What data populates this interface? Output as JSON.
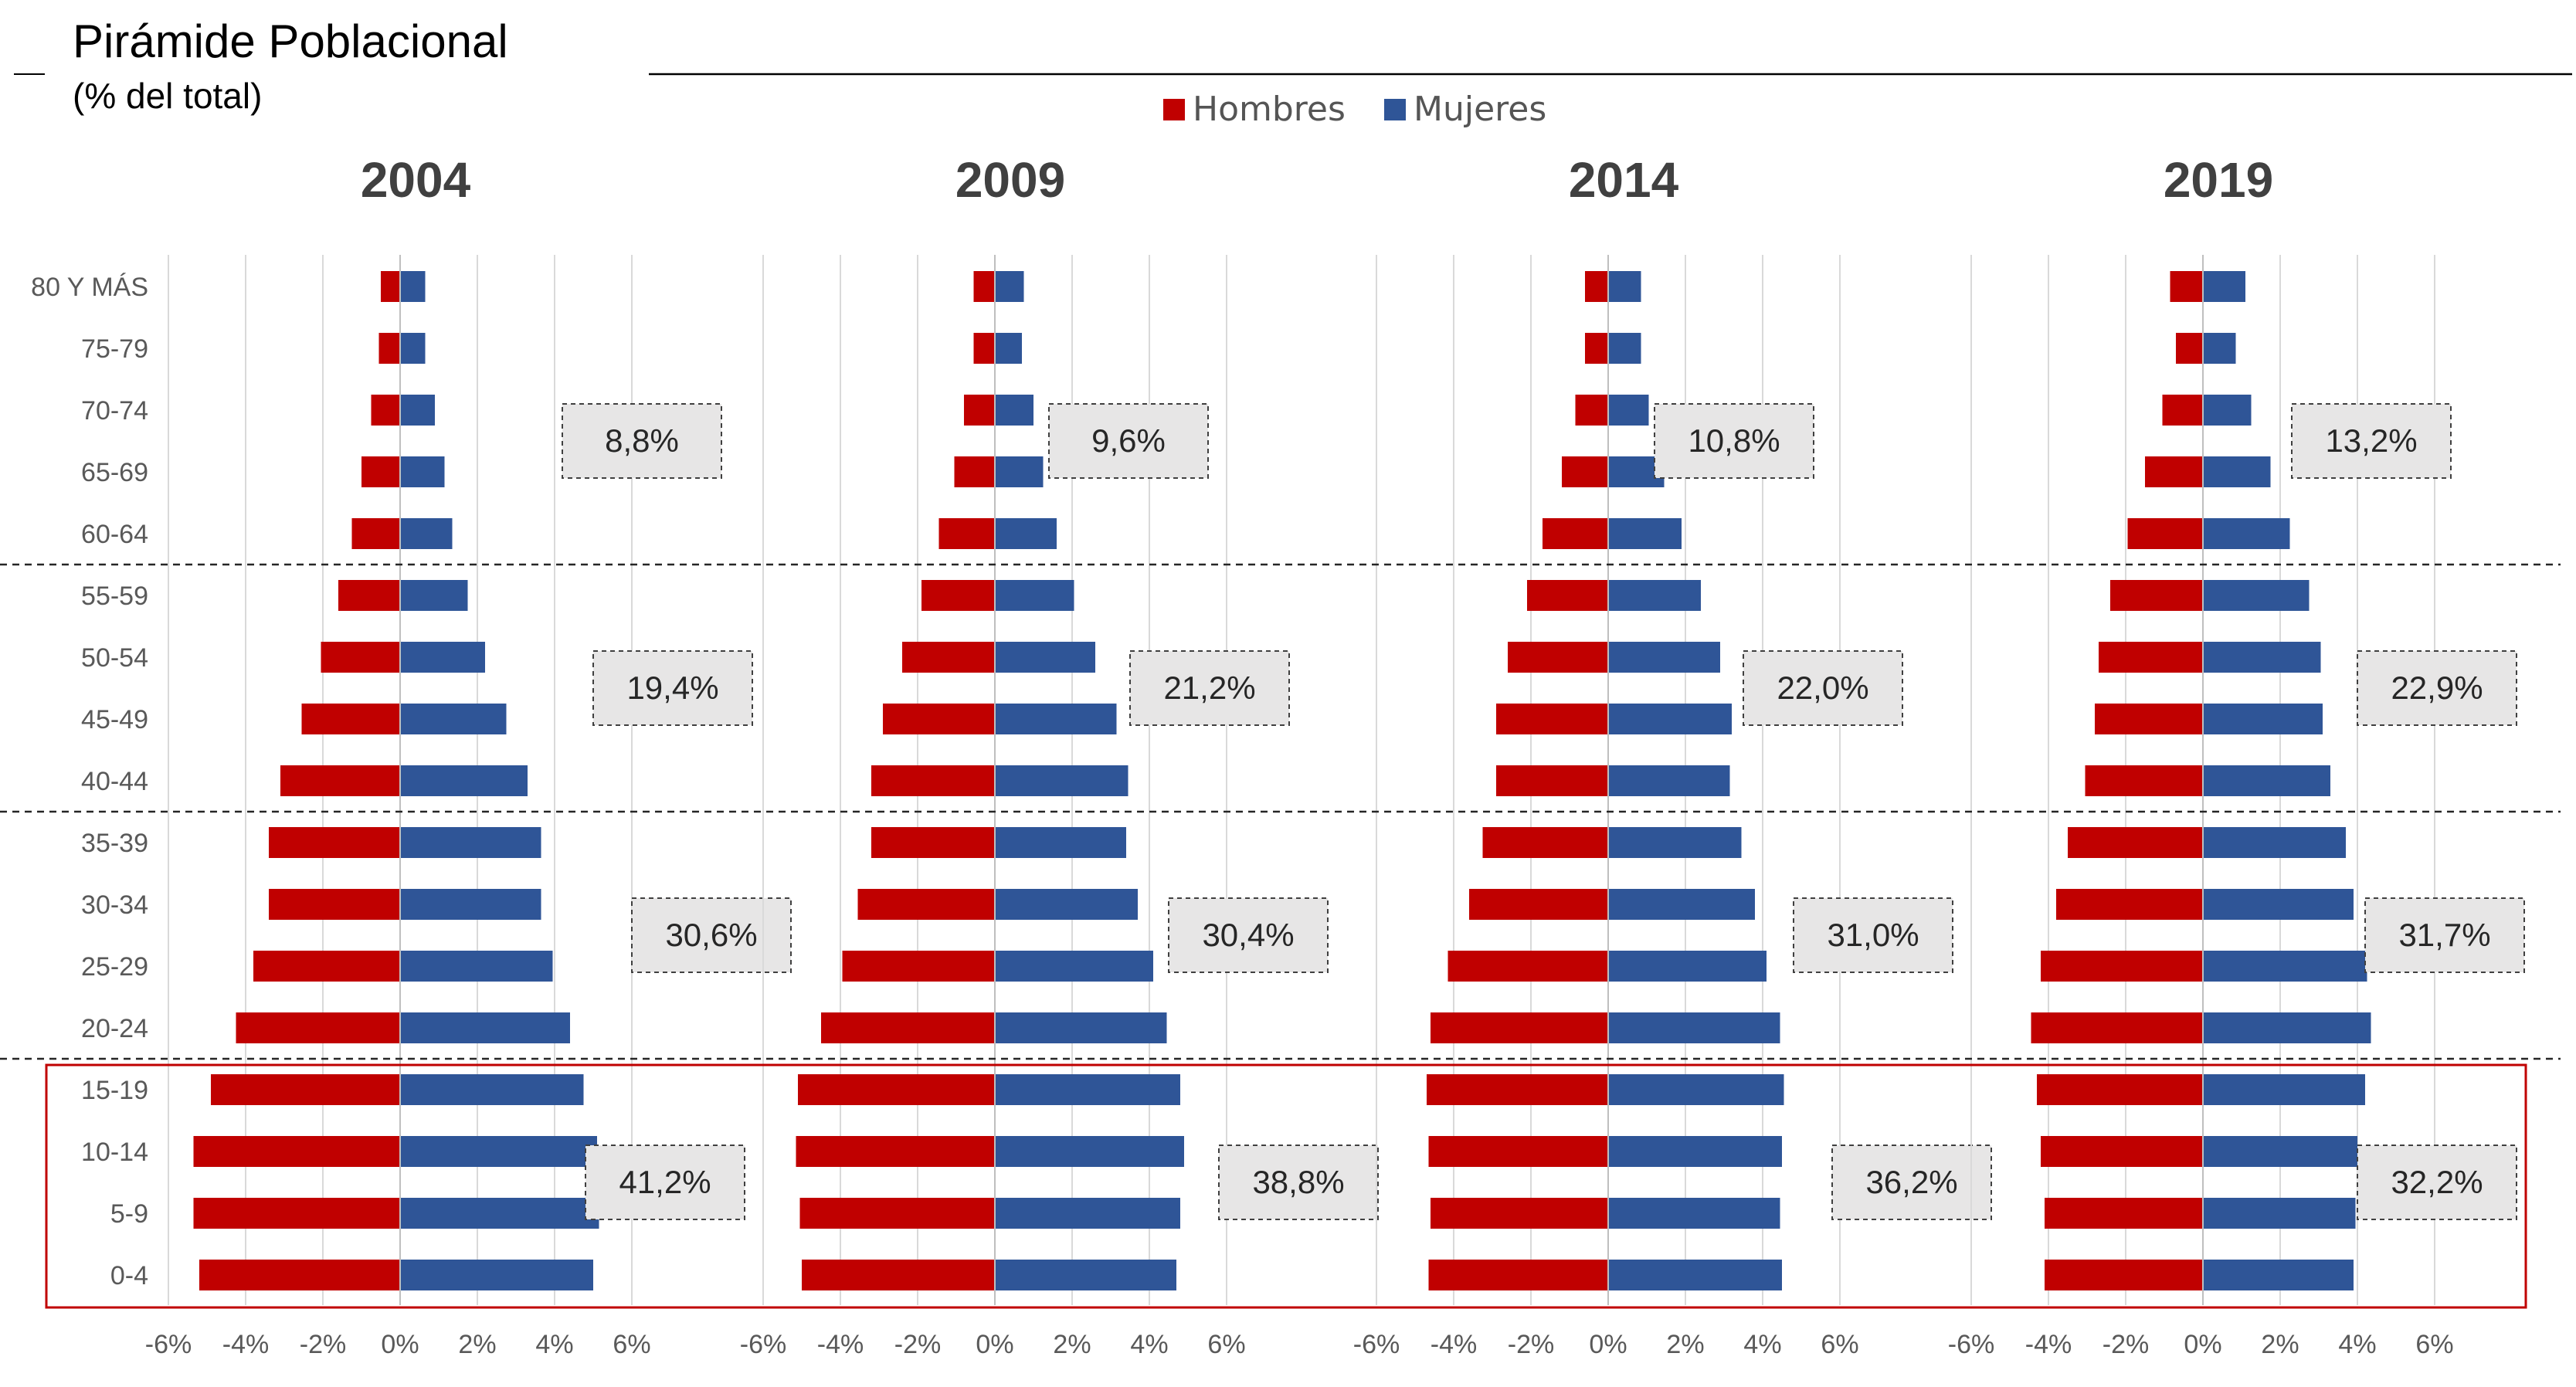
{
  "header": {
    "title": "Pirámide Poblacional",
    "subtitle": "(% del total)"
  },
  "legend": {
    "placement": "top-center",
    "items": [
      {
        "label": "Hombres",
        "color": "#C00000"
      },
      {
        "label": "Mujeres",
        "color": "#2F5597"
      }
    ]
  },
  "chart_data": {
    "type": "bar",
    "orientation": "horizontal",
    "stacked_diverging": true,
    "age_groups": [
      "80 Y MÁS",
      "75-79",
      "70-74",
      "65-69",
      "60-64",
      "55-59",
      "50-54",
      "45-49",
      "40-44",
      "35-39",
      "30-34",
      "25-29",
      "20-24",
      "15-19",
      "10-14",
      "5-9",
      "0-4"
    ],
    "x_ticks": [
      "-6%",
      "-4%",
      "-2%",
      "0%",
      "2%",
      "4%",
      "6%"
    ],
    "xlim": [
      -6,
      6
    ],
    "grid": true,
    "panels": [
      {
        "year": "2004",
        "series": [
          {
            "name": "Hombres",
            "values": [
              -0.5,
              -0.55,
              -0.75,
              -1.0,
              -1.25,
              -1.6,
              -2.05,
              -2.55,
              -3.1,
              -3.4,
              -3.4,
              -3.8,
              -4.25,
              -4.9,
              -5.35,
              -5.35,
              -5.2
            ]
          },
          {
            "name": "Mujeres",
            "values": [
              0.65,
              0.65,
              0.9,
              1.15,
              1.35,
              1.75,
              2.2,
              2.75,
              3.3,
              3.65,
              3.65,
              3.95,
              4.4,
              4.75,
              5.1,
              5.15,
              5.0
            ]
          }
        ],
        "annotations": [
          "8,8%",
          "19,4%",
          "30,6%",
          "41,2%"
        ]
      },
      {
        "year": "2009",
        "series": [
          {
            "name": "Hombres",
            "values": [
              -0.55,
              -0.55,
              -0.8,
              -1.05,
              -1.45,
              -1.9,
              -2.4,
              -2.9,
              -3.2,
              -3.2,
              -3.55,
              -3.95,
              -4.5,
              -5.1,
              -5.15,
              -5.05,
              -5.0
            ]
          },
          {
            "name": "Mujeres",
            "values": [
              0.75,
              0.7,
              1.0,
              1.25,
              1.6,
              2.05,
              2.6,
              3.15,
              3.45,
              3.4,
              3.7,
              4.1,
              4.45,
              4.8,
              4.9,
              4.8,
              4.7
            ]
          }
        ],
        "annotations": [
          "9,6%",
          "21,2%",
          "30,4%",
          "38,8%"
        ]
      },
      {
        "year": "2014",
        "series": [
          {
            "name": "Hombres",
            "values": [
              -0.6,
              -0.6,
              -0.85,
              -1.2,
              -1.7,
              -2.1,
              -2.6,
              -2.9,
              -2.9,
              -3.25,
              -3.6,
              -4.15,
              -4.6,
              -4.7,
              -4.65,
              -4.6,
              -4.65
            ]
          },
          {
            "name": "Mujeres",
            "values": [
              0.85,
              0.85,
              1.05,
              1.45,
              1.9,
              2.4,
              2.9,
              3.2,
              3.15,
              3.45,
              3.8,
              4.1,
              4.45,
              4.55,
              4.5,
              4.45,
              4.5
            ]
          }
        ],
        "annotations": [
          "10,8%",
          "22,0%",
          "31,0%",
          "36,2%"
        ]
      },
      {
        "year": "2019",
        "series": [
          {
            "name": "Hombres",
            "values": [
              -0.85,
              -0.7,
              -1.05,
              -1.5,
              -1.95,
              -2.4,
              -2.7,
              -2.8,
              -3.05,
              -3.5,
              -3.8,
              -4.2,
              -4.45,
              -4.3,
              -4.2,
              -4.1,
              -4.1
            ]
          },
          {
            "name": "Mujeres",
            "values": [
              1.1,
              0.85,
              1.25,
              1.75,
              2.25,
              2.75,
              3.05,
              3.1,
              3.3,
              3.7,
              3.9,
              4.25,
              4.35,
              4.2,
              4.0,
              3.95,
              3.9
            ]
          }
        ],
        "annotations": [
          "13,2%",
          "22,9%",
          "31,7%",
          "32,2%"
        ]
      }
    ]
  }
}
